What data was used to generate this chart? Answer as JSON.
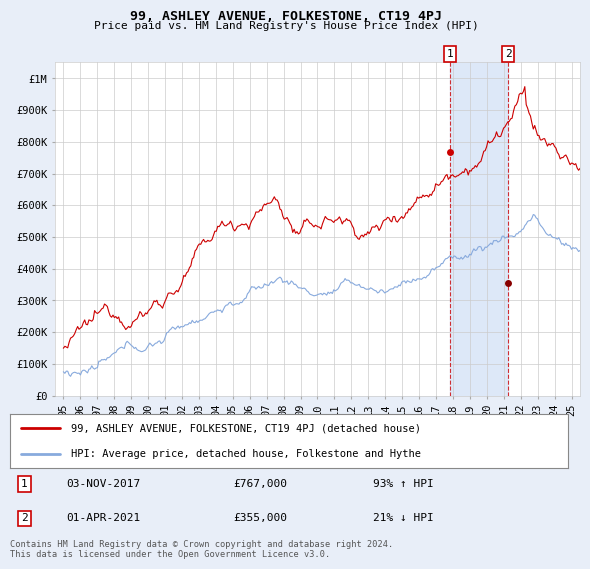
{
  "title": "99, ASHLEY AVENUE, FOLKESTONE, CT19 4PJ",
  "subtitle": "Price paid vs. HM Land Registry's House Price Index (HPI)",
  "background_color": "#e8eef8",
  "plot_bg_color": "#ffffff",
  "red_line_label": "99, ASHLEY AVENUE, FOLKESTONE, CT19 4PJ (detached house)",
  "blue_line_label": "HPI: Average price, detached house, Folkestone and Hythe",
  "annotation1_date": "03-NOV-2017",
  "annotation1_price": "£767,000",
  "annotation1_pct": "93% ↑ HPI",
  "annotation2_date": "01-APR-2021",
  "annotation2_price": "£355,000",
  "annotation2_pct": "21% ↓ HPI",
  "footnote": "Contains HM Land Registry data © Crown copyright and database right 2024.\nThis data is licensed under the Open Government Licence v3.0.",
  "ylim": [
    0,
    1050000
  ],
  "yticks": [
    0,
    100000,
    200000,
    300000,
    400000,
    500000,
    600000,
    700000,
    800000,
    900000,
    1000000
  ],
  "ytick_labels": [
    "£0",
    "£100K",
    "£200K",
    "£300K",
    "£400K",
    "£500K",
    "£600K",
    "£700K",
    "£800K",
    "£900K",
    "£1M"
  ],
  "red_color": "#cc0000",
  "blue_color": "#88aadd",
  "point1_x": 2017.84,
  "point1_y": 767000,
  "point2_x": 2021.25,
  "point2_y": 355000,
  "xlim_start": 1994.5,
  "xlim_end": 2025.5,
  "xtick_years": [
    1995,
    1996,
    1997,
    1998,
    1999,
    2000,
    2001,
    2002,
    2003,
    2004,
    2005,
    2006,
    2007,
    2008,
    2009,
    2010,
    2011,
    2012,
    2013,
    2014,
    2015,
    2016,
    2017,
    2018,
    2019,
    2020,
    2021,
    2022,
    2023,
    2024,
    2025
  ],
  "shade_color": "#dde8f8"
}
